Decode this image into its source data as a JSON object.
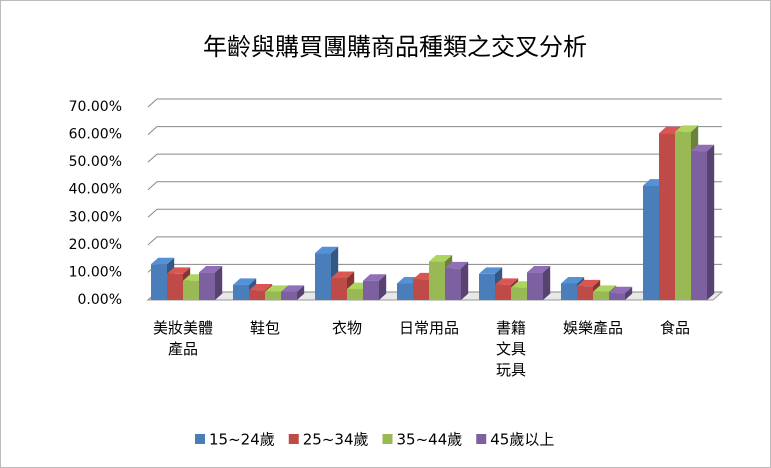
{
  "chart_data": {
    "type": "bar3d",
    "title": "年齡與購買團購商品種類之交叉分析",
    "categories": [
      "美妝美體產品",
      "鞋包",
      "衣物",
      "日常用品",
      "書籍文具玩具",
      "娛樂產品",
      "食品"
    ],
    "series": [
      {
        "name": "15~24歲",
        "color": "#4a7ebb",
        "values": [
          13,
          5.5,
          17,
          6,
          9.5,
          6,
          41.5
        ]
      },
      {
        "name": "25~34歲",
        "color": "#be4b48",
        "values": [
          9.5,
          3.5,
          8,
          7.5,
          5.5,
          5,
          60.5
        ]
      },
      {
        "name": "35~44歲",
        "color": "#98b954",
        "values": [
          7,
          3,
          4,
          14,
          4.5,
          3,
          61
        ]
      },
      {
        "name": "45歲以上",
        "color": "#7d60a0",
        "values": [
          10,
          3,
          7,
          11.5,
          10,
          2.5,
          54
        ]
      }
    ],
    "ylim": [
      0,
      70
    ],
    "yticks": [
      {
        "value": 0,
        "label": "0.00%"
      },
      {
        "value": 10,
        "label": "10.00%"
      },
      {
        "value": 20,
        "label": "20.00%"
      },
      {
        "value": 30,
        "label": "30.00%"
      },
      {
        "value": 40,
        "label": "40.00%"
      },
      {
        "value": 50,
        "label": "50.00%"
      },
      {
        "value": 60,
        "label": "60.00%"
      },
      {
        "value": 70,
        "label": "70.00%"
      }
    ],
    "grid": true
  }
}
